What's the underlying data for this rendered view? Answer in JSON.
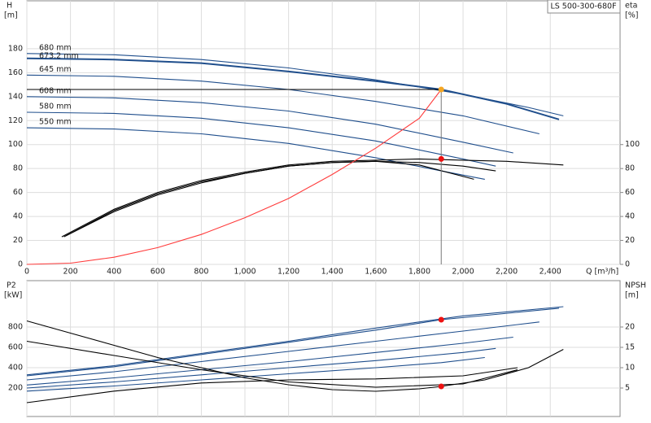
{
  "chart_data": [
    {
      "type": "line",
      "annotation": "LS 500-300-680F",
      "x_label": "Q [m³/h]",
      "y_label": "H",
      "y_unit": "[m]",
      "y2_label": "eta",
      "y2_unit": "[%]",
      "xlim": [
        0,
        2720
      ],
      "xticks": [
        0,
        200,
        400,
        600,
        800,
        {
          "value": 1000,
          "label": "1,000"
        },
        {
          "value": 1200,
          "label": "1,200"
        },
        {
          "value": 1400,
          "label": "1,400"
        },
        {
          "value": 1600,
          "label": "1,600"
        },
        {
          "value": 1800,
          "label": "1,800"
        },
        {
          "value": 2000,
          "label": "2,000"
        },
        {
          "value": 2200,
          "label": "2,200"
        },
        {
          "value": 2400,
          "label": "2,400"
        }
      ],
      "ylim": [
        0,
        220
      ],
      "yticks": [
        0,
        20,
        40,
        60,
        80,
        100,
        120,
        140,
        160,
        180
      ],
      "y2lim": [
        0,
        220
      ],
      "y2ticks": [
        0,
        20,
        40,
        60,
        80,
        100
      ],
      "grid": true,
      "series": [
        {
          "name": "680 mm",
          "color": "#1f4e8c",
          "x": [
            0,
            400,
            800,
            1200,
            1600,
            2000,
            2300,
            2460
          ],
          "values": [
            176,
            175,
            171,
            164,
            154,
            142,
            131,
            124
          ]
        },
        {
          "name": "673.2 mm",
          "color": "#1f4e8c",
          "x": [
            0,
            400,
            800,
            1200,
            1600,
            1900,
            2200,
            2440
          ],
          "values": [
            172,
            171,
            168,
            161,
            153,
            146,
            134,
            121
          ]
        },
        {
          "name": "645 mm",
          "color": "#1f4e8c",
          "x": [
            0,
            400,
            800,
            1200,
            1600,
            2000,
            2350
          ],
          "values": [
            158,
            157,
            153,
            146,
            136,
            124,
            109
          ]
        },
        {
          "name": "608 mm",
          "color": "#1f4e8c",
          "x": [
            0,
            400,
            800,
            1200,
            1600,
            2000,
            2230
          ],
          "values": [
            140,
            139,
            135,
            128,
            117,
            102,
            93
          ]
        },
        {
          "name": "580 mm",
          "color": "#1f4e8c",
          "x": [
            0,
            400,
            800,
            1200,
            1600,
            2000,
            2150
          ],
          "values": [
            127,
            126,
            122,
            114,
            103,
            88,
            82
          ]
        },
        {
          "name": "550 mm",
          "color": "#1f4e8c",
          "x": [
            0,
            400,
            800,
            1200,
            1600,
            1900,
            2100
          ],
          "values": [
            114,
            113,
            109,
            101,
            89,
            78,
            71
          ]
        },
        {
          "color": "#000000",
          "axis": "y2",
          "x": [
            160,
            400,
            600,
            800,
            1000,
            1200,
            1400,
            1600,
            1800,
            2000,
            2200,
            2460
          ],
          "values": [
            23,
            46,
            60,
            70,
            77,
            83,
            86,
            87,
            88,
            87,
            86,
            83
          ]
        },
        {
          "color": "#000000",
          "axis": "y2",
          "x": [
            180,
            400,
            600,
            800,
            1000,
            1200,
            1400,
            1600,
            1800,
            2000,
            2150
          ],
          "values": [
            24,
            44,
            58,
            68,
            76,
            82,
            85,
            86,
            85,
            82,
            78
          ]
        },
        {
          "color": "#000000",
          "axis": "y2",
          "x": [
            170,
            400,
            600,
            800,
            1000,
            1200,
            1400,
            1600,
            1800,
            2050
          ],
          "values": [
            23,
            45,
            59,
            69,
            76,
            82,
            85,
            86,
            83,
            71
          ]
        },
        {
          "color": "#ff3b3b",
          "x": [
            0,
            200,
            400,
            600,
            800,
            1000,
            1200,
            1400,
            1600,
            1800,
            1900
          ],
          "values": [
            0,
            1,
            6,
            14,
            25,
            39,
            55,
            75,
            97,
            122,
            146
          ]
        }
      ],
      "operating_point": {
        "x": 1900,
        "y": 146,
        "y2": 88,
        "y_color": "#f5a623",
        "y2_color": "#ee1111",
        "guides": true
      }
    },
    {
      "type": "line",
      "y_label": "P2",
      "y_unit": "[kW]",
      "y2_label": "NPSH",
      "y2_unit": "[m]",
      "xlim": [
        0,
        2720
      ],
      "xticks": [
        0,
        200,
        400,
        600,
        800,
        1000,
        1200,
        1400,
        1600,
        1800,
        2000,
        2200,
        2400
      ],
      "x_tick_labels": false,
      "ylim": [
        -80,
        1256
      ],
      "yticks": [
        200,
        400,
        600,
        800
      ],
      "y2lim": [
        -2,
        31.4
      ],
      "y2ticks": [
        5,
        10,
        15,
        20
      ],
      "grid": true,
      "series": [
        {
          "color": "#1f4e8c",
          "x": [
            0,
            400,
            800,
            1200,
            1600,
            2000,
            2460
          ],
          "values": [
            330,
            420,
            540,
            660,
            790,
            910,
            1000
          ]
        },
        {
          "color": "#1f4e8c",
          "x": [
            0,
            400,
            800,
            1200,
            1600,
            1900,
            2440
          ],
          "values": [
            320,
            410,
            530,
            650,
            770,
            872,
            985
          ]
        },
        {
          "color": "#1f4e8c",
          "x": [
            0,
            400,
            800,
            1200,
            1600,
            2000,
            2350
          ],
          "values": [
            280,
            360,
            460,
            560,
            660,
            760,
            850
          ]
        },
        {
          "color": "#1f4e8c",
          "x": [
            0,
            400,
            800,
            1200,
            1600,
            2000,
            2230
          ],
          "values": [
            230,
            300,
            380,
            460,
            550,
            640,
            700
          ]
        },
        {
          "color": "#1f4e8c",
          "x": [
            0,
            400,
            800,
            1200,
            1600,
            2000,
            2150
          ],
          "values": [
            200,
            260,
            330,
            400,
            470,
            550,
            590
          ]
        },
        {
          "color": "#1f4e8c",
          "x": [
            0,
            400,
            800,
            1200,
            1600,
            1900,
            2100
          ],
          "values": [
            170,
            220,
            280,
            340,
            400,
            450,
            500
          ]
        },
        {
          "color": "#000000",
          "axis": "y2",
          "x": [
            0,
            200,
            400,
            600,
            800,
            1000,
            1200,
            1400,
            1600,
            1800,
            1900,
            2100,
            2300,
            2460
          ],
          "values": [
            21.5,
            18.5,
            15.5,
            12.5,
            10,
            7.5,
            5.8,
            4.6,
            4.2,
            4.8,
            5.4,
            7,
            10,
            14.5
          ]
        },
        {
          "color": "#000000",
          "axis": "y2",
          "x": [
            0,
            400,
            800,
            1200,
            1600,
            2000,
            2250
          ],
          "values": [
            16.5,
            13,
            9.5,
            6.5,
            5.2,
            6,
            9.5
          ]
        },
        {
          "color": "#000000",
          "x": [
            0,
            400,
            800,
            1200,
            1600,
            2000,
            2250
          ],
          "values": [
            56,
            170,
            250,
            280,
            290,
            320,
            400
          ]
        }
      ],
      "operating_point": {
        "x": 1900,
        "y": 872,
        "y2": 5.4,
        "y_color": "#ee1111",
        "y2_color": "#ee1111",
        "guides": false
      }
    }
  ]
}
